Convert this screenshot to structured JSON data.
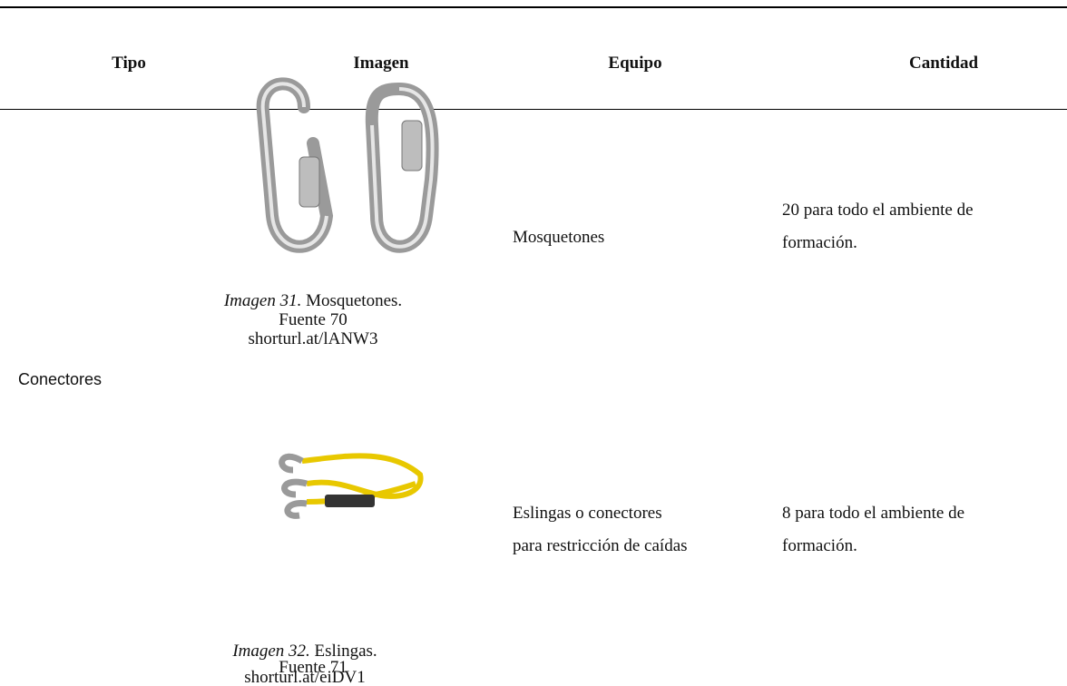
{
  "table": {
    "headers": [
      "Tipo",
      "Imagen",
      "Equipo",
      "Cantidad"
    ],
    "type": "Conectores",
    "rows": [
      {
        "caption": {
          "label": "Imagen 31.",
          "text": "Mosquetones.",
          "source": "Fuente 70",
          "url": "shorturl.at/lANW3"
        },
        "equipo": [
          "Mosquetones"
        ],
        "cantidad": [
          "20 para todo el ambiente de",
          "formación."
        ]
      },
      {
        "caption": {
          "label": "Imagen 32.",
          "text": "Eslingas.",
          "source": "Fuente 71",
          "url": "shorturl.at/eiDV1"
        },
        "equipo": [
          "Eslingas o conectores",
          "para restricción de caídas"
        ],
        "cantidad": [
          "8 para todo el ambiente de",
          "formación."
        ]
      }
    ]
  }
}
